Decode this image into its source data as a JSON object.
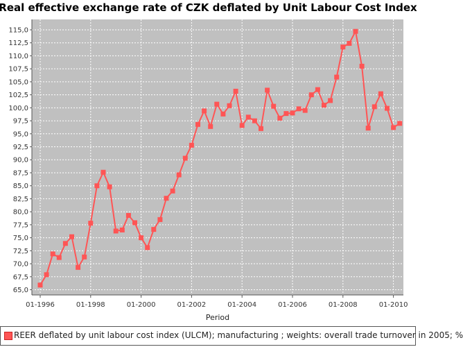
{
  "chart_data": {
    "type": "line",
    "title": "Real effective exchange rate of CZK deflated by Unit Labour Cost Index",
    "xlabel": "Period",
    "ylabel": "",
    "ylim": [
      64.0,
      117.0
    ],
    "yticks": [
      "65,0",
      "67,5",
      "70,0",
      "72,5",
      "75,0",
      "77,5",
      "80,0",
      "82,5",
      "85,0",
      "87,5",
      "90,0",
      "92,5",
      "95,0",
      "97,5",
      "100,0",
      "102,5",
      "105,0",
      "107,5",
      "110,0",
      "112,5",
      "115,0"
    ],
    "xticks": [
      "01-1996",
      "01-1998",
      "01-2000",
      "01-2002",
      "01-2004",
      "01-2006",
      "01-2008",
      "01-2010"
    ],
    "grid": true,
    "legend_position": "bottom",
    "series_color": "#ff5555",
    "series": [
      {
        "name": "REER deflated by unit labour cost index (ULCM);  manufacturing ; weights: overall trade turnover in 2005; %",
        "x": [
          "1996-Q1",
          "1996-Q2",
          "1996-Q3",
          "1996-Q4",
          "1997-Q1",
          "1997-Q2",
          "1997-Q3",
          "1997-Q4",
          "1998-Q1",
          "1998-Q2",
          "1998-Q3",
          "1998-Q4",
          "1999-Q1",
          "1999-Q2",
          "1999-Q3",
          "1999-Q4",
          "2000-Q1",
          "2000-Q2",
          "2000-Q3",
          "2000-Q4",
          "2001-Q1",
          "2001-Q2",
          "2001-Q3",
          "2001-Q4",
          "2002-Q1",
          "2002-Q2",
          "2002-Q3",
          "2002-Q4",
          "2003-Q1",
          "2003-Q2",
          "2003-Q3",
          "2003-Q4",
          "2004-Q1",
          "2004-Q2",
          "2004-Q3",
          "2004-Q4",
          "2005-Q1",
          "2005-Q2",
          "2005-Q3",
          "2005-Q4",
          "2006-Q1",
          "2006-Q2",
          "2006-Q3",
          "2006-Q4",
          "2007-Q1",
          "2007-Q2",
          "2007-Q3",
          "2007-Q4",
          "2008-Q1",
          "2008-Q2",
          "2008-Q3",
          "2008-Q4",
          "2009-Q1",
          "2009-Q2",
          "2009-Q3",
          "2009-Q4",
          "2010-Q1",
          "2010-Q2"
        ],
        "values": [
          65.9,
          67.9,
          71.9,
          71.2,
          73.9,
          75.2,
          69.3,
          71.3,
          77.8,
          85.0,
          87.6,
          84.8,
          76.3,
          76.5,
          79.3,
          77.9,
          75.0,
          73.1,
          76.6,
          78.5,
          82.6,
          84.0,
          87.1,
          90.3,
          92.8,
          96.8,
          99.4,
          96.4,
          100.7,
          98.8,
          100.4,
          103.2,
          96.6,
          98.2,
          97.5,
          96.0,
          103.4,
          100.3,
          98.0,
          98.9,
          99.0,
          99.8,
          99.5,
          102.5,
          103.5,
          100.5,
          101.4,
          105.9,
          111.7,
          112.4,
          114.7,
          108.0,
          96.1,
          100.2,
          102.7,
          99.9,
          96.2,
          97.0
        ]
      }
    ]
  }
}
